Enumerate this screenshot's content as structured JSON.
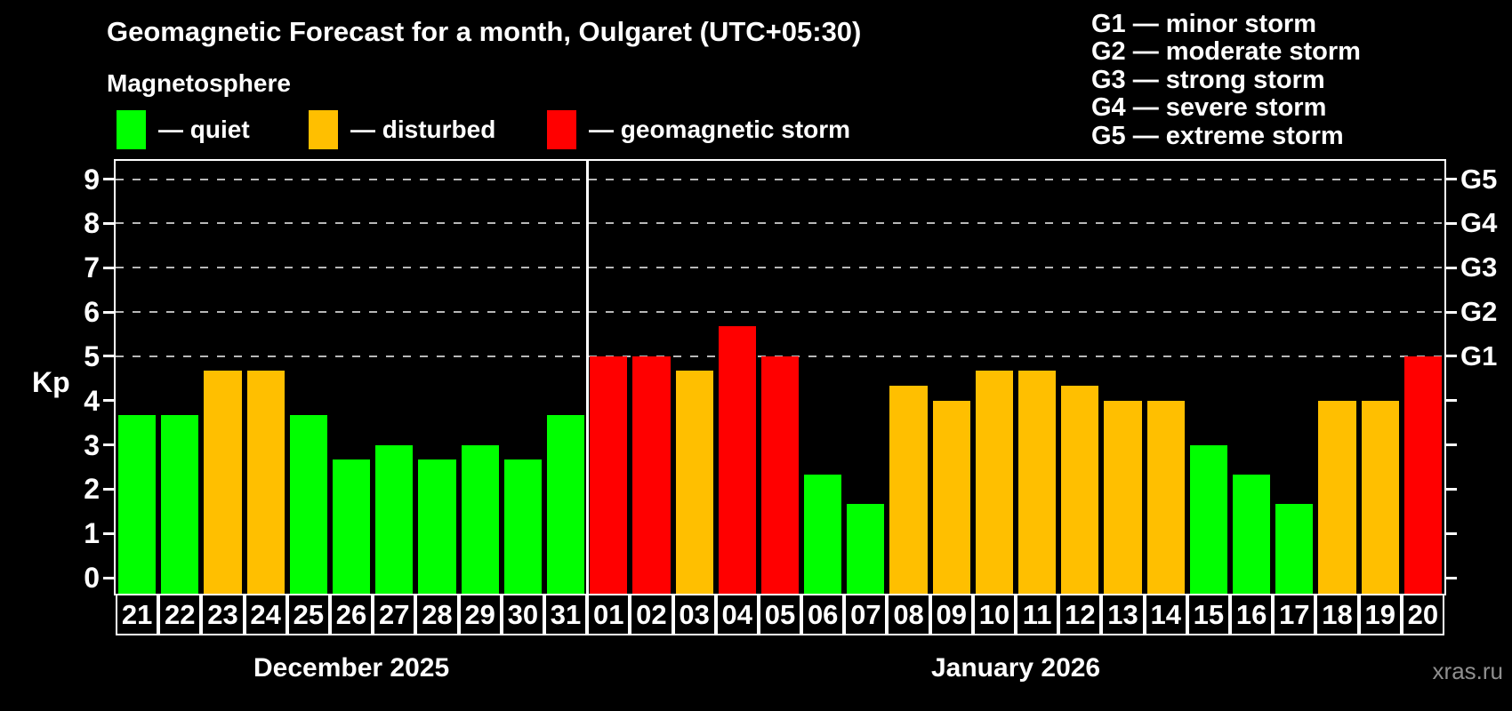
{
  "header": {
    "title": "Geomagnetic Forecast for a month, Oulgaret (UTC+05:30)",
    "subtitle": "Magnetosphere"
  },
  "legend": {
    "items": [
      {
        "key": "quiet",
        "label": "— quiet",
        "color": "#00ff00"
      },
      {
        "key": "disturbed",
        "label": "— disturbed",
        "color": "#ffbf00"
      },
      {
        "key": "storm",
        "label": "— geomagnetic storm",
        "color": "#ff0000"
      }
    ]
  },
  "g_legend": {
    "items": [
      "G1 — minor storm",
      "G2 — moderate storm",
      "G3 — strong storm",
      "G4 — severe storm",
      "G5 — extreme storm"
    ]
  },
  "watermark": "xras.ru",
  "chart_data": {
    "type": "bar",
    "ylabel": "Kp",
    "ylim": [
      -0.4,
      9.4
    ],
    "y_ticks": [
      0,
      1,
      2,
      3,
      4,
      5,
      6,
      7,
      8,
      9
    ],
    "grid": "dashed horizontal at Kp 5-9 only",
    "g_levels": [
      {
        "kp": 5,
        "label": "G1"
      },
      {
        "kp": 6,
        "label": "G2"
      },
      {
        "kp": 7,
        "label": "G3"
      },
      {
        "kp": 8,
        "label": "G4"
      },
      {
        "kp": 9,
        "label": "G5"
      }
    ],
    "status_colors": {
      "quiet": "#00ff00",
      "disturbed": "#ffbf00",
      "storm": "#ff0000"
    },
    "months": [
      {
        "label": "December 2025",
        "days": [
          {
            "day": "21",
            "kp": 3.67,
            "status": "quiet"
          },
          {
            "day": "22",
            "kp": 3.67,
            "status": "quiet"
          },
          {
            "day": "23",
            "kp": 4.67,
            "status": "disturbed"
          },
          {
            "day": "24",
            "kp": 4.67,
            "status": "disturbed"
          },
          {
            "day": "25",
            "kp": 3.67,
            "status": "quiet"
          },
          {
            "day": "26",
            "kp": 2.67,
            "status": "quiet"
          },
          {
            "day": "27",
            "kp": 3.0,
            "status": "quiet"
          },
          {
            "day": "28",
            "kp": 2.67,
            "status": "quiet"
          },
          {
            "day": "29",
            "kp": 3.0,
            "status": "quiet"
          },
          {
            "day": "30",
            "kp": 2.67,
            "status": "quiet"
          },
          {
            "day": "31",
            "kp": 3.67,
            "status": "quiet"
          }
        ]
      },
      {
        "label": "January 2026",
        "days": [
          {
            "day": "01",
            "kp": 5.0,
            "status": "storm"
          },
          {
            "day": "02",
            "kp": 5.0,
            "status": "storm"
          },
          {
            "day": "03",
            "kp": 4.67,
            "status": "disturbed"
          },
          {
            "day": "04",
            "kp": 5.67,
            "status": "storm"
          },
          {
            "day": "05",
            "kp": 5.0,
            "status": "storm"
          },
          {
            "day": "06",
            "kp": 2.33,
            "status": "quiet"
          },
          {
            "day": "07",
            "kp": 1.67,
            "status": "quiet"
          },
          {
            "day": "08",
            "kp": 4.33,
            "status": "disturbed"
          },
          {
            "day": "09",
            "kp": 4.0,
            "status": "disturbed"
          },
          {
            "day": "10",
            "kp": 4.67,
            "status": "disturbed"
          },
          {
            "day": "11",
            "kp": 4.67,
            "status": "disturbed"
          },
          {
            "day": "12",
            "kp": 4.33,
            "status": "disturbed"
          },
          {
            "day": "13",
            "kp": 4.0,
            "status": "disturbed"
          },
          {
            "day": "14",
            "kp": 4.0,
            "status": "disturbed"
          },
          {
            "day": "15",
            "kp": 3.0,
            "status": "quiet"
          },
          {
            "day": "16",
            "kp": 2.33,
            "status": "quiet"
          },
          {
            "day": "17",
            "kp": 1.67,
            "status": "quiet"
          },
          {
            "day": "18",
            "kp": 4.0,
            "status": "disturbed"
          },
          {
            "day": "19",
            "kp": 4.0,
            "status": "disturbed"
          },
          {
            "day": "20",
            "kp": 5.0,
            "status": "storm"
          }
        ]
      }
    ]
  }
}
